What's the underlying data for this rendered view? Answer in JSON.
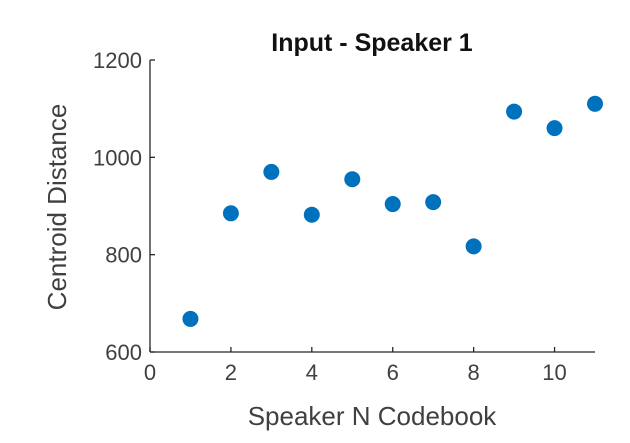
{
  "chart_data": {
    "type": "scatter",
    "title": "Input - Speaker 1",
    "xlabel": "Speaker N Codebook",
    "ylabel": "Centroid Distance",
    "xlim": [
      0,
      11
    ],
    "ylim": [
      600,
      1200
    ],
    "xticks": [
      0,
      2,
      4,
      6,
      8,
      10
    ],
    "yticks": [
      600,
      800,
      1000,
      1200
    ],
    "grid": false,
    "marker_color": "#0072BD",
    "series": [
      {
        "x": [
          1,
          2,
          3,
          4,
          5,
          6,
          7,
          8,
          9,
          10,
          11
        ],
        "y": [
          668,
          885,
          970,
          882,
          955,
          904,
          908,
          817,
          1094,
          1060,
          1110
        ]
      }
    ]
  }
}
